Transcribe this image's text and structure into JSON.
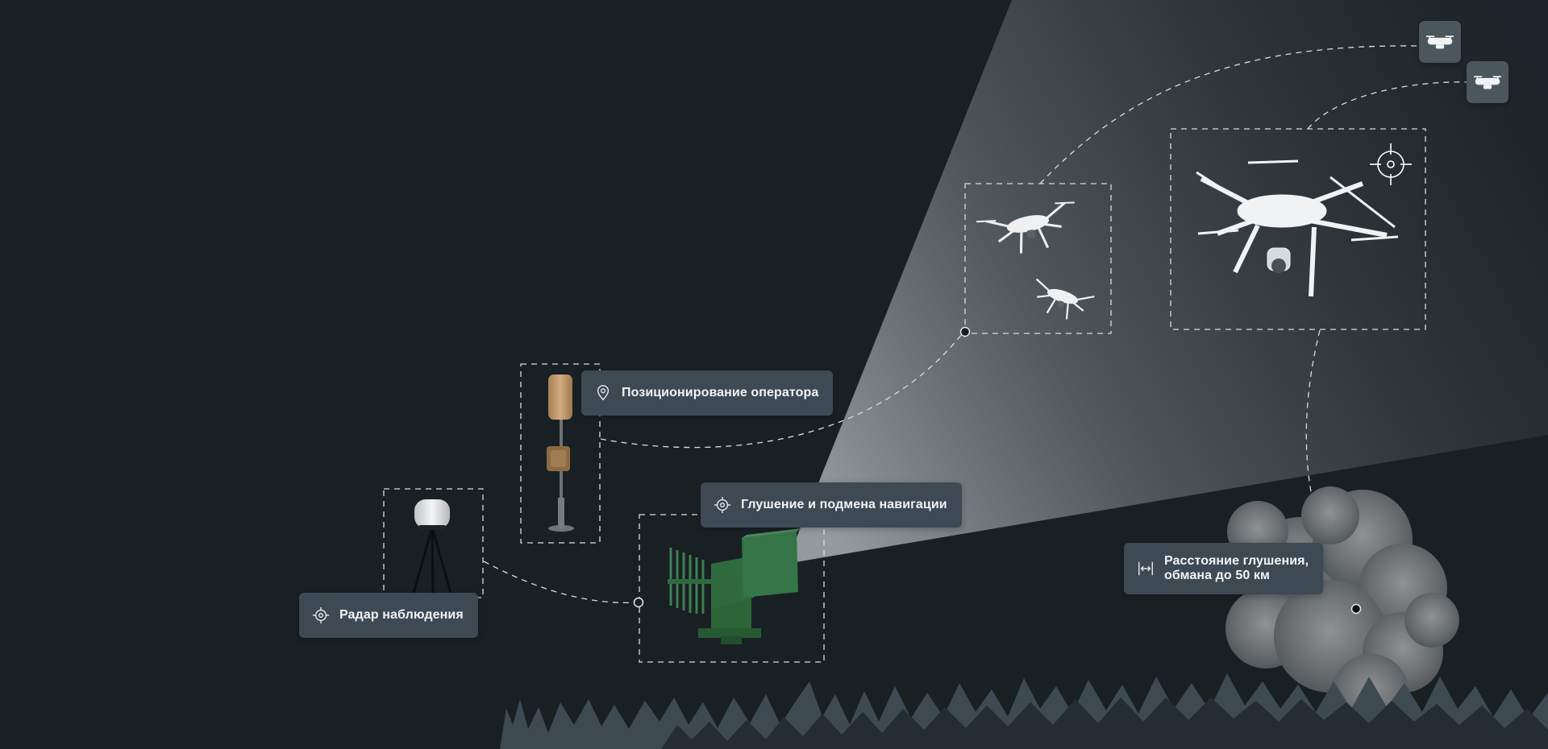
{
  "labels": {
    "operator_positioning": "Позиционирование оператора",
    "jamming_spoofing": "Глушение и подмена навигации",
    "surveillance_radar": "Радар наблюдения",
    "jamming_range_line1": "Расстояние глушения,",
    "jamming_range_line2": "обмана до 50 км"
  },
  "icons": {
    "operator": "location-pin-icon",
    "jamming": "target-icon",
    "radar": "target-icon",
    "range": "arrows-horizontal-icon",
    "drone_chip": "drone-icon",
    "target_lock": "crosshair-icon"
  },
  "colors": {
    "background": "#192024",
    "label_bg": "#3d4a53",
    "label_text": "#f1f4f6",
    "dashed_line": "#d7dcdf",
    "beam": "#8a9196",
    "forest_light": "#3e4a52",
    "forest_dark": "#232d33",
    "jammer_green": "#2f6a3e"
  }
}
